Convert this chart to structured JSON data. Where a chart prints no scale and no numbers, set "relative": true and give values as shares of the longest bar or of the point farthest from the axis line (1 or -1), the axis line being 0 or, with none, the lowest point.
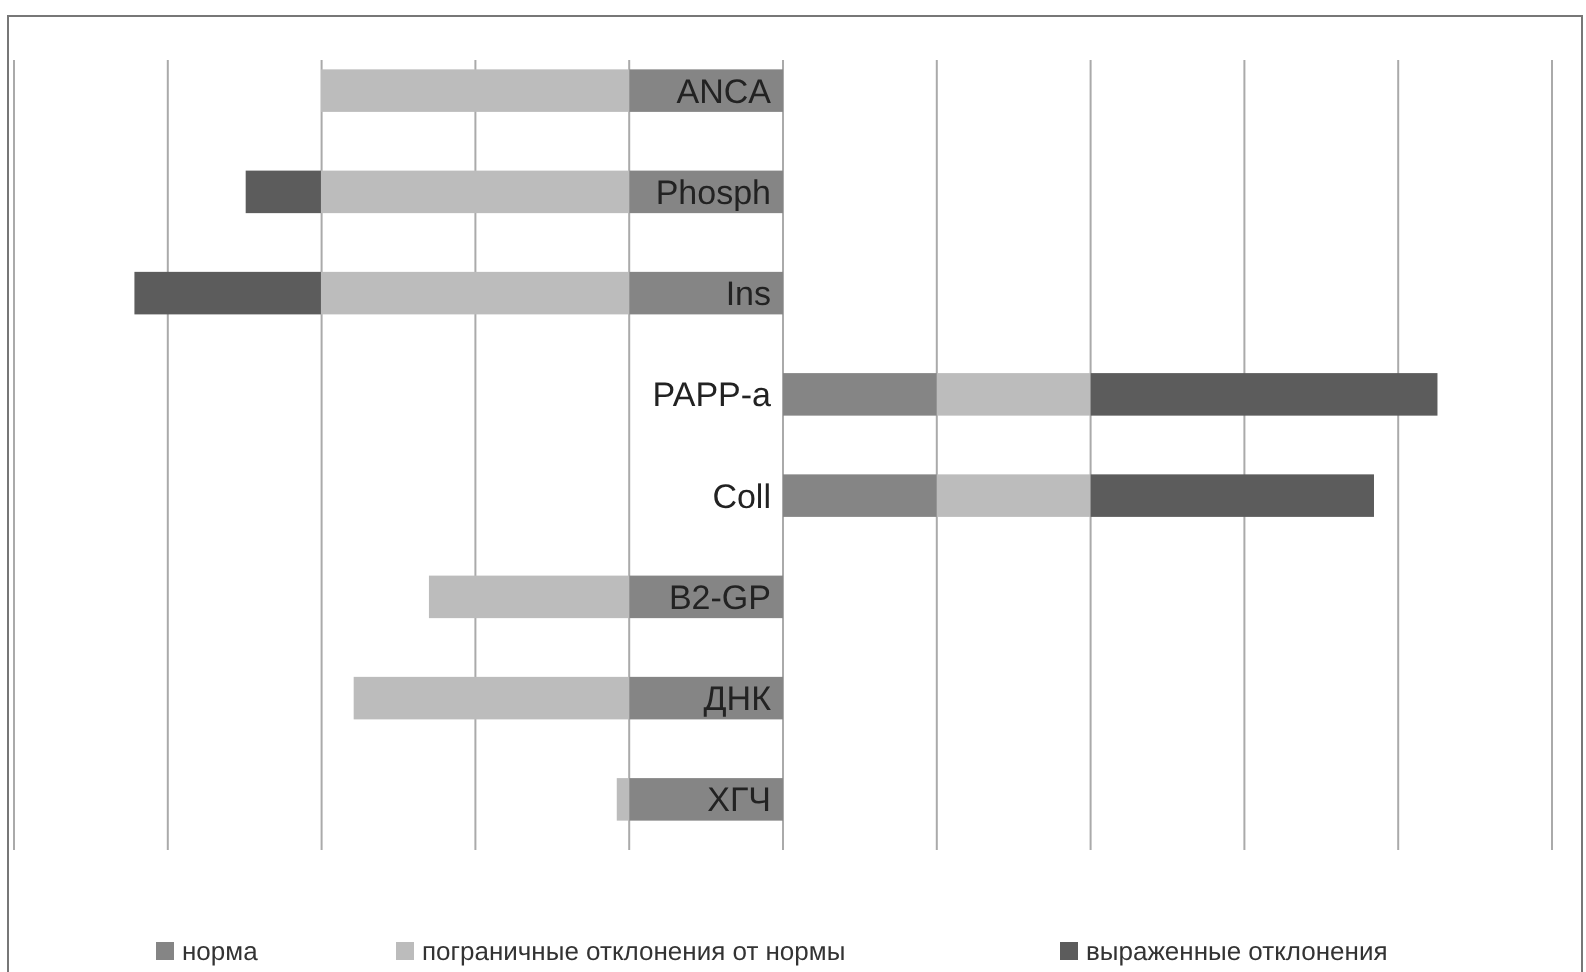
{
  "chart_data": {
    "type": "bar",
    "orientation": "horizontal",
    "stacked": true,
    "relative": true,
    "grid": "x",
    "legend": "bottom",
    "categories": [
      "ANCA",
      "Phosph",
      "Ins",
      "PAPP-a",
      "Coll",
      "B2-GP",
      "ДНК",
      "ХГЧ"
    ],
    "series": [
      {
        "name": "норма",
        "color": "#858585",
        "values": [
          -0.235,
          -0.235,
          -0.235,
          0.235,
          0.235,
          -0.235,
          -0.235,
          -0.235
        ]
      },
      {
        "name": "пограничные отклонения от нормы",
        "color": "#bcbcbc",
        "values": [
          -0.471,
          -0.471,
          -0.471,
          0.235,
          0.235,
          -0.306,
          -0.421,
          -0.019
        ]
      },
      {
        "name": "выраженные отклонения",
        "color": "#5c5c5c",
        "values": [
          0,
          -0.115,
          -0.285,
          0.53,
          0.433,
          0,
          0,
          0
        ]
      }
    ]
  }
}
